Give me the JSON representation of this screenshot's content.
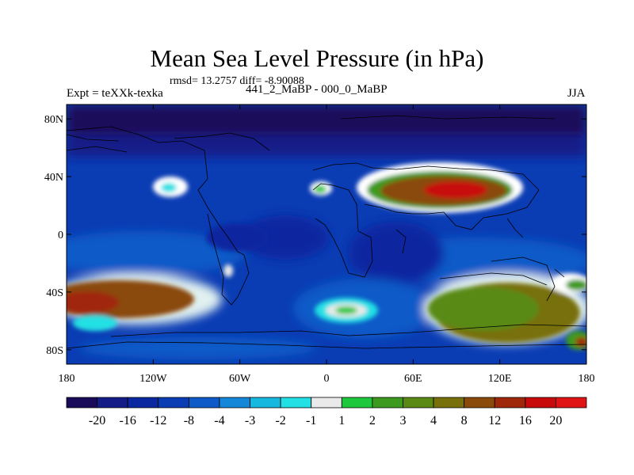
{
  "title": "Mean Sea Level Pressure (in hPa)",
  "stats": "rmsd= 13.2757  diff= -8.90088",
  "left_label": "Expt = teXXk-texka",
  "center_label": "441_2_MaBP - 000_0_MaBP",
  "right_label": "JJA",
  "x_ticks": [
    "180",
    "120W",
    "60W",
    "0",
    "60E",
    "120E",
    "180"
  ],
  "y_ticks": [
    "80N",
    "40N",
    "0",
    "40S",
    "80S"
  ],
  "colorbar": {
    "labels": [
      "-20",
      "-16",
      "-12",
      "-8",
      "-4",
      "-3",
      "-2",
      "-1",
      "1",
      "2",
      "3",
      "4",
      "8",
      "12",
      "16",
      "20"
    ],
    "colors": [
      "#1a0a5a",
      "#141c88",
      "#0a28a0",
      "#0a3cb4",
      "#0e5ac8",
      "#1487d8",
      "#16b8e0",
      "#22e0e4",
      "#eaeaea",
      "#1ec83c",
      "#3c9a1e",
      "#5a8a14",
      "#78700a",
      "#8a4a0a",
      "#a0280a",
      "#c80a0a",
      "#e01414"
    ]
  },
  "map": {
    "background_color": "#0a3cb4",
    "lon_range": [
      -180,
      180
    ],
    "lat_range": [
      -90,
      90
    ]
  }
}
